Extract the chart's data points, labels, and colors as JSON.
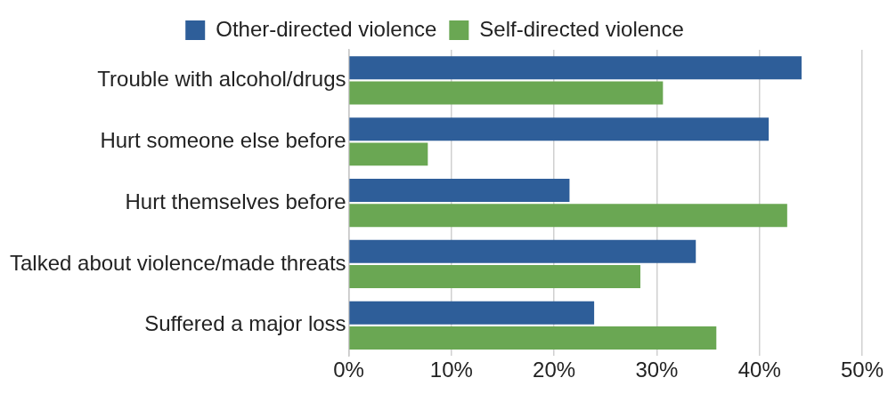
{
  "chart_data": {
    "type": "bar",
    "orientation": "horizontal",
    "categories": [
      "Trouble with alcohol/drugs",
      "Hurt someone else before",
      "Hurt themselves before",
      "Talked about violence/made threats",
      "Suffered a major loss"
    ],
    "series": [
      {
        "name": "Other-directed violence",
        "color": "#2e5e99",
        "values": [
          44.1,
          40.9,
          21.5,
          33.8,
          23.9
        ]
      },
      {
        "name": "Self-directed violence",
        "color": "#6aa753",
        "values": [
          30.6,
          7.7,
          42.7,
          28.4,
          35.8
        ]
      }
    ],
    "xlim": [
      0,
      50
    ],
    "xticks": [
      {
        "value": 0,
        "label": "0%"
      },
      {
        "value": 10,
        "label": "10%"
      },
      {
        "value": 20,
        "label": "20%"
      },
      {
        "value": 30,
        "label": "30%"
      },
      {
        "value": 40,
        "label": "40%"
      },
      {
        "value": 50,
        "label": "50%"
      }
    ],
    "grid": "x",
    "legend": "top"
  }
}
